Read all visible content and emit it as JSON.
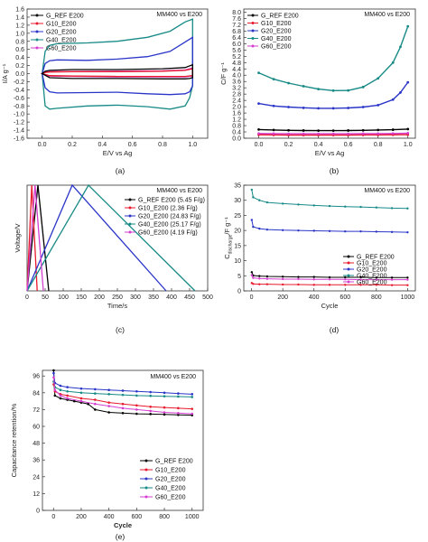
{
  "chart_data": [
    {
      "id": "a",
      "type": "line",
      "panel_label": "(a)",
      "annotation": "MM400 vs E200",
      "xlabel": "E/V vs Ag",
      "ylabel": "I/A g⁻¹",
      "xlim": [
        -0.1,
        1.1
      ],
      "ylim": [
        -1.6,
        1.6
      ],
      "xticks": [
        0.0,
        0.2,
        0.4,
        0.6,
        0.8,
        1.0
      ],
      "yticks": [
        -1.6,
        -1.4,
        -1.2,
        -1.0,
        -0.8,
        -0.6,
        -0.4,
        -0.2,
        0.0,
        0.2,
        0.4,
        0.6,
        0.8,
        1.0,
        1.2,
        1.4,
        1.6
      ],
      "legend_position": "top-left",
      "series": [
        {
          "name": "G_REF E200",
          "color": "#000000",
          "upper": [
            [
              0,
              0.0
            ],
            [
              0.02,
              0.06
            ],
            [
              0.05,
              0.08
            ],
            [
              0.2,
              0.1
            ],
            [
              0.5,
              0.1
            ],
            [
              0.8,
              0.12
            ],
            [
              0.95,
              0.15
            ],
            [
              1.0,
              0.22
            ]
          ],
          "lower": [
            [
              1.0,
              -0.1
            ],
            [
              0.98,
              -0.12
            ],
            [
              0.95,
              -0.13
            ],
            [
              0.8,
              -0.13
            ],
            [
              0.5,
              -0.12
            ],
            [
              0.2,
              -0.12
            ],
            [
              0.05,
              -0.1
            ],
            [
              0,
              0.0
            ]
          ]
        },
        {
          "name": "G10_E200",
          "color": "#e8192c",
          "upper": [
            [
              0,
              0.0
            ],
            [
              0.02,
              0.03
            ],
            [
              0.05,
              0.04
            ],
            [
              0.2,
              0.05
            ],
            [
              0.5,
              0.05
            ],
            [
              0.8,
              0.06
            ],
            [
              0.95,
              0.08
            ],
            [
              1.0,
              0.12
            ]
          ],
          "lower": [
            [
              1.0,
              -0.05
            ],
            [
              0.95,
              -0.07
            ],
            [
              0.8,
              -0.07
            ],
            [
              0.5,
              -0.07
            ],
            [
              0.2,
              -0.06
            ],
            [
              0.05,
              -0.05
            ],
            [
              0,
              0.0
            ]
          ]
        },
        {
          "name": "G20_E200",
          "color": "#2a35c8",
          "upper": [
            [
              0,
              0.0
            ],
            [
              0.02,
              0.25
            ],
            [
              0.05,
              0.32
            ],
            [
              0.1,
              0.34
            ],
            [
              0.3,
              0.33
            ],
            [
              0.5,
              0.36
            ],
            [
              0.7,
              0.42
            ],
            [
              0.85,
              0.55
            ],
            [
              0.95,
              0.78
            ],
            [
              1.0,
              0.9
            ]
          ],
          "lower": [
            [
              1.0,
              -0.3
            ],
            [
              0.98,
              -0.45
            ],
            [
              0.95,
              -0.5
            ],
            [
              0.85,
              -0.52
            ],
            [
              0.7,
              -0.5
            ],
            [
              0.5,
              -0.46
            ],
            [
              0.3,
              -0.47
            ],
            [
              0.1,
              -0.48
            ],
            [
              0.05,
              -0.45
            ],
            [
              0.02,
              -0.35
            ],
            [
              0,
              0.0
            ]
          ]
        },
        {
          "name": "G40_E200",
          "color": "#168a86",
          "upper": [
            [
              0,
              0.0
            ],
            [
              0.02,
              0.55
            ],
            [
              0.05,
              0.7
            ],
            [
              0.1,
              0.74
            ],
            [
              0.3,
              0.76
            ],
            [
              0.5,
              0.8
            ],
            [
              0.7,
              0.9
            ],
            [
              0.85,
              1.05
            ],
            [
              0.95,
              1.28
            ],
            [
              1.0,
              1.35
            ]
          ],
          "lower": [
            [
              1.0,
              -0.3
            ],
            [
              0.98,
              -0.6
            ],
            [
              0.95,
              -0.8
            ],
            [
              0.85,
              -0.88
            ],
            [
              0.7,
              -0.82
            ],
            [
              0.5,
              -0.78
            ],
            [
              0.3,
              -0.8
            ],
            [
              0.1,
              -0.86
            ],
            [
              0.05,
              -0.88
            ],
            [
              0.02,
              -0.8
            ],
            [
              0,
              0.0
            ]
          ]
        },
        {
          "name": "G60_E200",
          "color": "#d43ed0",
          "upper": [
            [
              0,
              0.0
            ],
            [
              0.02,
              0.04
            ],
            [
              0.05,
              0.05
            ],
            [
              0.5,
              0.06
            ],
            [
              0.8,
              0.07
            ],
            [
              0.95,
              0.09
            ],
            [
              1.0,
              0.14
            ]
          ],
          "lower": [
            [
              1.0,
              -0.06
            ],
            [
              0.95,
              -0.08
            ],
            [
              0.5,
              -0.08
            ],
            [
              0.05,
              -0.06
            ],
            [
              0,
              0.0
            ]
          ]
        }
      ]
    },
    {
      "id": "b",
      "type": "scatter",
      "panel_label": "(b)",
      "annotation": "MM400 vs E200",
      "xlabel": "E/V vs Ag",
      "ylabel": "C/F g⁻¹",
      "xlim": [
        -0.1,
        1.05
      ],
      "ylim": [
        0,
        8.2
      ],
      "xticks": [
        0.0,
        0.2,
        0.4,
        0.6,
        0.8,
        1.0
      ],
      "yticks": [
        0.0,
        0.4,
        0.8,
        1.2,
        1.6,
        2.0,
        2.4,
        2.8,
        3.2,
        3.6,
        4.0,
        4.4,
        4.8,
        5.2,
        5.6,
        6.0,
        6.4,
        6.8,
        7.2,
        7.6,
        8.0
      ],
      "legend_position": "top-left",
      "series": [
        {
          "name": "G_REF E200",
          "color": "#000000",
          "x": [
            0.0,
            0.1,
            0.2,
            0.3,
            0.4,
            0.5,
            0.6,
            0.7,
            0.8,
            0.9,
            1.0
          ],
          "y": [
            0.55,
            0.52,
            0.5,
            0.49,
            0.48,
            0.48,
            0.49,
            0.5,
            0.52,
            0.54,
            0.58
          ]
        },
        {
          "name": "G10_E200",
          "color": "#e8192c",
          "x": [
            0.0,
            0.1,
            0.2,
            0.3,
            0.4,
            0.5,
            0.6,
            0.7,
            0.8,
            0.9,
            1.0
          ],
          "y": [
            0.22,
            0.21,
            0.2,
            0.2,
            0.2,
            0.2,
            0.2,
            0.21,
            0.21,
            0.22,
            0.23
          ]
        },
        {
          "name": "G20_E200",
          "color": "#2a35c8",
          "x": [
            0.0,
            0.1,
            0.2,
            0.3,
            0.4,
            0.5,
            0.6,
            0.7,
            0.8,
            0.9,
            0.95,
            1.0
          ],
          "y": [
            2.2,
            2.05,
            1.98,
            1.93,
            1.9,
            1.9,
            1.92,
            1.98,
            2.1,
            2.45,
            2.9,
            3.55
          ]
        },
        {
          "name": "G40_E200",
          "color": "#168a86",
          "x": [
            0.0,
            0.1,
            0.2,
            0.3,
            0.4,
            0.5,
            0.6,
            0.7,
            0.8,
            0.9,
            0.95,
            1.0
          ],
          "y": [
            4.15,
            3.75,
            3.5,
            3.3,
            3.12,
            3.02,
            3.03,
            3.25,
            3.8,
            4.8,
            5.8,
            7.1
          ]
        },
        {
          "name": "G60_E200",
          "color": "#d43ed0",
          "x": [
            0.0,
            0.1,
            0.2,
            0.3,
            0.4,
            0.5,
            0.6,
            0.7,
            0.8,
            0.9,
            1.0
          ],
          "y": [
            0.3,
            0.29,
            0.28,
            0.28,
            0.28,
            0.28,
            0.28,
            0.29,
            0.29,
            0.3,
            0.32
          ]
        }
      ]
    },
    {
      "id": "c",
      "type": "line",
      "panel_label": "(c)",
      "annotation": "MM400 vs E200",
      "xlabel": "Time/s",
      "ylabel": "Voltage/V",
      "xlim": [
        0,
        500
      ],
      "ylim": [
        0,
        1.0
      ],
      "xticks": [
        0,
        50,
        100,
        150,
        200,
        250,
        300,
        350,
        400,
        450,
        500
      ],
      "legend_position": "top-right",
      "series": [
        {
          "name": "G_REF E200 (5.45 F/g)",
          "color": "#000000",
          "x": [
            0,
            30,
            60
          ],
          "y": [
            0,
            1.0,
            0
          ]
        },
        {
          "name": "G10_E200 (2.36 F/g)",
          "color": "#e8192c",
          "x": [
            0,
            13,
            28
          ],
          "y": [
            0,
            1.0,
            0
          ]
        },
        {
          "name": "G20_E200 (24.83 F/g)",
          "color": "#2a35c8",
          "x": [
            0,
            125,
            385
          ],
          "y": [
            0,
            1.0,
            0
          ]
        },
        {
          "name": "G40_E200 (25.17 F/g)",
          "color": "#168a86",
          "x": [
            0,
            170,
            465
          ],
          "y": [
            0,
            1.0,
            0
          ]
        },
        {
          "name": "G60_E200 (4.19 F/g)",
          "color": "#d43ed0",
          "x": [
            0,
            22,
            45
          ],
          "y": [
            0,
            1.0,
            0
          ]
        }
      ]
    },
    {
      "id": "d",
      "type": "line",
      "panel_label": "(d)",
      "annotation": "MM400 vs E200",
      "xlabel": "Cycle",
      "ylabel": "C_discharge/F g⁻¹",
      "ylabel_main": "C",
      "ylabel_sub": "discharge",
      "ylabel_tail": "/F g⁻¹",
      "xlim": [
        -50,
        1050
      ],
      "ylim": [
        0,
        35
      ],
      "xticks": [
        0,
        200,
        400,
        600,
        800,
        1000
      ],
      "yticks": [
        0,
        5,
        10,
        15,
        20,
        25,
        30,
        35
      ],
      "legend_position": "center-right",
      "series": [
        {
          "name": "G_REF E200",
          "color": "#000000",
          "x": [
            1,
            10,
            50,
            100,
            200,
            300,
            400,
            500,
            600,
            700,
            800,
            900,
            1000
          ],
          "y": [
            6.2,
            5.1,
            4.9,
            4.8,
            4.7,
            4.6,
            4.6,
            4.5,
            4.5,
            4.5,
            4.4,
            4.4,
            4.4
          ]
        },
        {
          "name": "G10_E200",
          "color": "#e8192c",
          "x": [
            1,
            10,
            50,
            100,
            200,
            300,
            400,
            500,
            600,
            700,
            800,
            900,
            1000
          ],
          "y": [
            2.6,
            2.3,
            2.2,
            2.2,
            2.1,
            2.1,
            2.0,
            2.0,
            2.0,
            2.0,
            2.0,
            1.9,
            1.9
          ]
        },
        {
          "name": "G20_E200",
          "color": "#2a35c8",
          "x": [
            1,
            10,
            50,
            100,
            200,
            300,
            400,
            500,
            600,
            700,
            800,
            900,
            1000
          ],
          "y": [
            23.5,
            21.2,
            20.6,
            20.3,
            20.1,
            20.0,
            19.9,
            19.8,
            19.7,
            19.7,
            19.6,
            19.5,
            19.4
          ]
        },
        {
          "name": "G40_E200",
          "color": "#168a86",
          "x": [
            1,
            10,
            50,
            100,
            200,
            300,
            400,
            500,
            600,
            700,
            800,
            900,
            1000
          ],
          "y": [
            33.5,
            31.0,
            30.0,
            29.3,
            28.9,
            28.6,
            28.3,
            28.1,
            27.9,
            27.8,
            27.6,
            27.4,
            27.3
          ]
        },
        {
          "name": "G60_E200",
          "color": "#d43ed0",
          "x": [
            1,
            10,
            50,
            100,
            200,
            300,
            400,
            500,
            600,
            700,
            800,
            900,
            1000
          ],
          "y": [
            5.2,
            4.3,
            4.1,
            4.0,
            3.9,
            3.9,
            3.8,
            3.8,
            3.8,
            3.7,
            3.7,
            3.7,
            3.7
          ]
        }
      ]
    },
    {
      "id": "e",
      "type": "line",
      "panel_label": "(e)",
      "annotation": "MM400 vs E200",
      "xlabel": "Cycle",
      "ylabel": "Capacitance retention/%",
      "xlim": [
        -80,
        1080
      ],
      "ylim": [
        0,
        100
      ],
      "xticks": [
        0,
        200,
        400,
        600,
        800,
        1000
      ],
      "yticks": [
        0,
        12,
        24,
        36,
        48,
        60,
        72,
        84,
        96
      ],
      "legend_position": "bottom-right",
      "series": [
        {
          "name": "G_REF E200",
          "color": "#000000",
          "x": [
            1,
            10,
            50,
            100,
            150,
            200,
            250,
            300,
            400,
            500,
            600,
            700,
            800,
            900,
            1000
          ],
          "y": [
            100,
            82,
            80,
            79,
            78,
            77,
            76,
            72,
            70,
            69.5,
            69,
            68.8,
            68.5,
            68.2,
            68
          ]
        },
        {
          "name": "G10_E200",
          "color": "#e8192c",
          "x": [
            1,
            10,
            50,
            100,
            200,
            300,
            400,
            500,
            600,
            700,
            800,
            900,
            1000
          ],
          "y": [
            90,
            85,
            83,
            82,
            80,
            79,
            77,
            76,
            75,
            74,
            73.5,
            73,
            72.5
          ]
        },
        {
          "name": "G20_E200",
          "color": "#2a35c8",
          "x": [
            1,
            10,
            50,
            100,
            200,
            300,
            400,
            500,
            600,
            700,
            800,
            900,
            1000
          ],
          "y": [
            98,
            91,
            89,
            88,
            87,
            86.5,
            86,
            85.5,
            85,
            84.5,
            84,
            83.5,
            83
          ]
        },
        {
          "name": "G40_E200",
          "color": "#168a86",
          "x": [
            1,
            10,
            50,
            100,
            200,
            300,
            400,
            500,
            600,
            700,
            800,
            900,
            1000
          ],
          "y": [
            92,
            88,
            86,
            85,
            84,
            83.5,
            83,
            82.5,
            82,
            81.8,
            81.5,
            81.3,
            81
          ]
        },
        {
          "name": "G60_E200",
          "color": "#d43ed0",
          "x": [
            1,
            10,
            50,
            100,
            200,
            300,
            400,
            500,
            600,
            700,
            800,
            900,
            1000
          ],
          "y": [
            95,
            86,
            82,
            80,
            78,
            76,
            74.5,
            73,
            72,
            71,
            70,
            69.5,
            69
          ]
        }
      ]
    }
  ]
}
